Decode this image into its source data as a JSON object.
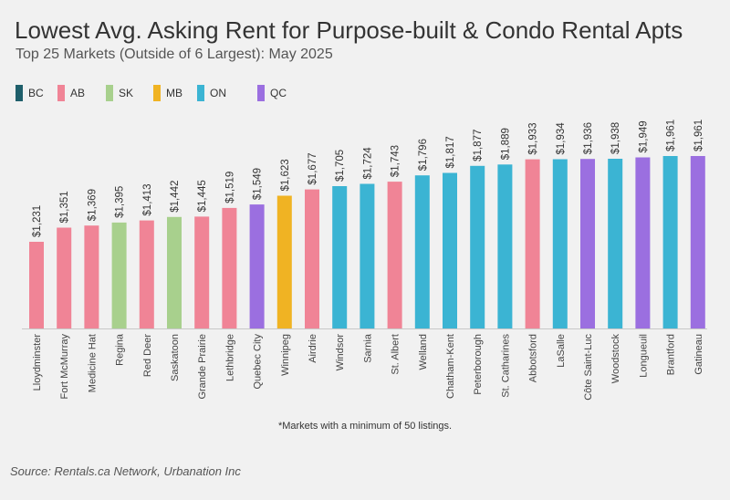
{
  "title": "Lowest Avg. Asking Rent for Purpose-built & Condo Rental Apts",
  "subtitle": "Top 25 Markets (Outside of 6 Largest): May 2025",
  "footnote": "*Markets with a minimum of 50 listings.",
  "source": "Source: Rentals.ca Network, Urbanation Inc",
  "legend": [
    {
      "label": "BC",
      "color": "#1f5f6b"
    },
    {
      "label": "AB",
      "color": "#f08496"
    },
    {
      "label": "SK",
      "color": "#a8d08d"
    },
    {
      "label": "MB",
      "color": "#f0b323"
    },
    {
      "label": "ON",
      "color": "#3bb4d3"
    },
    {
      "label": "QC",
      "color": "#9b6fe0"
    }
  ],
  "chart_data": {
    "type": "bar",
    "grid": false,
    "ylim": [
      0,
      1961
    ],
    "categories": [
      "Lloydminster",
      "Fort McMurray",
      "Medicine Hat",
      "Regina",
      "Red Deer",
      "Saskatoon",
      "Grande Prairie",
      "Lethbridge",
      "Quebec City",
      "Winnipeg",
      "Airdrie",
      "Windsor",
      "Sarnia",
      "St. Albert",
      "Welland",
      "Chatham-Kent",
      "Peterborough",
      "St. Catharines",
      "Abbotsford",
      "LaSalle",
      "Côte Saint-Luc",
      "Woodstock",
      "Longueuil",
      "Brantford",
      "Gatineau"
    ],
    "values": [
      1231,
      1351,
      1369,
      1395,
      1413,
      1442,
      1445,
      1519,
      1549,
      1623,
      1677,
      1705,
      1724,
      1743,
      1796,
      1817,
      1877,
      1889,
      1933,
      1934,
      1936,
      1938,
      1949,
      1961,
      1961
    ],
    "data_labels": [
      "$1,231",
      "$1,351",
      "$1,369",
      "$1,395",
      "$1,413",
      "$1,442",
      "$1,445",
      "$1,519",
      "$1,549",
      "$1,623",
      "$1,677",
      "$1,705",
      "$1,724",
      "$1,743",
      "$1,796",
      "$1,817",
      "$1,877",
      "$1,889",
      "$1,933",
      "$1,934",
      "$1,936",
      "$1,938",
      "$1,949",
      "$1,961",
      "$1,961"
    ],
    "provinces": [
      "AB",
      "AB",
      "AB",
      "SK",
      "AB",
      "SK",
      "AB",
      "AB",
      "QC",
      "MB",
      "AB",
      "ON",
      "ON",
      "AB",
      "ON",
      "ON",
      "ON",
      "ON",
      "AB",
      "ON",
      "QC",
      "ON",
      "QC",
      "ON",
      "QC"
    ]
  }
}
